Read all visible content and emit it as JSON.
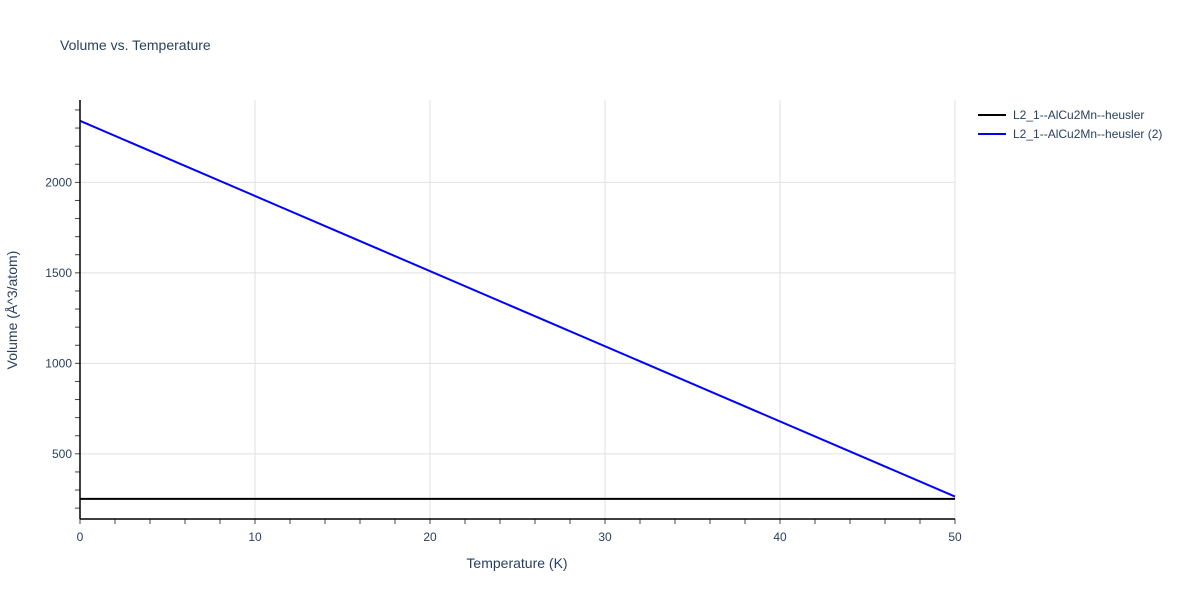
{
  "chart_data": {
    "type": "line",
    "title": "Volume vs. Temperature",
    "xlabel": "Temperature (K)",
    "ylabel": "Volume (Å^3/atom)",
    "xlim": [
      0,
      50
    ],
    "ylim": [
      140,
      2455
    ],
    "xticks": [
      0,
      10,
      20,
      30,
      40,
      50
    ],
    "yticks": [
      500,
      1000,
      1500,
      2000
    ],
    "grid": true,
    "legend_position": "top-right",
    "series": [
      {
        "name": "L2_1--AlCu2Mn--heusler",
        "color": "#000000",
        "x": [
          0,
          50
        ],
        "y": [
          251,
          251
        ]
      },
      {
        "name": "L2_1--AlCu2Mn--heusler (2)",
        "color": "#0000ff",
        "x": [
          0,
          50
        ],
        "y": [
          2340,
          264
        ]
      }
    ]
  }
}
